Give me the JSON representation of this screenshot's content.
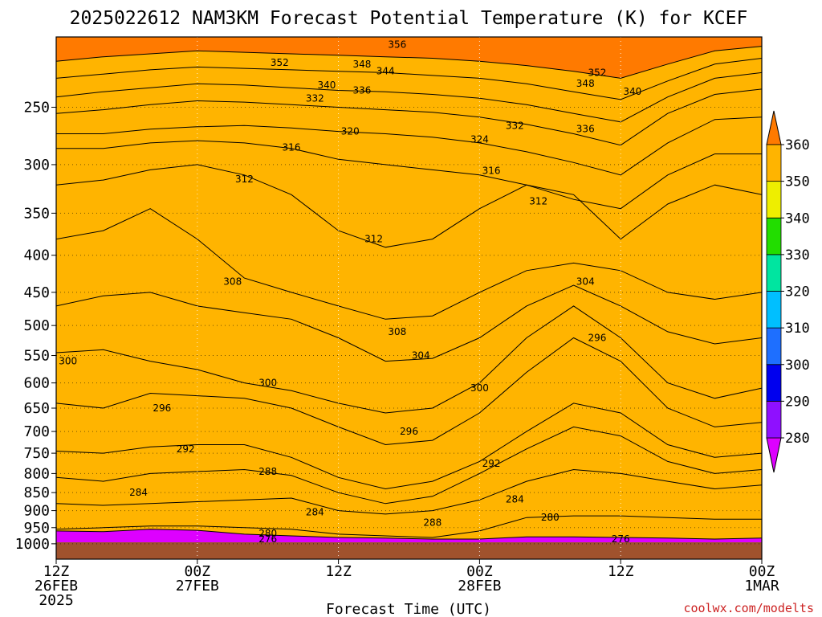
{
  "title": "2025022612 NAM3KM Forecast Potential Temperature (K) for KCEF",
  "xlabel": "Forecast Time (UTC)",
  "watermark": "coolwx.com/modelts",
  "colors": {
    "levels": [
      280,
      290,
      300,
      310,
      320,
      330,
      340,
      350,
      360
    ],
    "bands": [
      "#dd00ff",
      "#8f10ff",
      "#0000ee",
      "#1e6fff",
      "#00bfff",
      "#00e5a0",
      "#22dd00",
      "#eeee00",
      "#ffb400",
      "#ff7a00"
    ],
    "ground": "#a0522d"
  },
  "chart_data": {
    "type": "heatmap",
    "title": "2025022612 NAM3KM Forecast Potential Temperature (K) for KCEF",
    "xlabel": "Forecast Time (UTC)",
    "ylabel": "",
    "x_ticks": [
      {
        "hour": 0,
        "l1": "12Z",
        "l2": "26FEB",
        "l3": "2025"
      },
      {
        "hour": 12,
        "l1": "00Z",
        "l2": "27FEB",
        "l3": ""
      },
      {
        "hour": 24,
        "l1": "12Z",
        "l2": "",
        "l3": ""
      },
      {
        "hour": 36,
        "l1": "00Z",
        "l2": "28FEB",
        "l3": ""
      },
      {
        "hour": 48,
        "l1": "12Z",
        "l2": "",
        "l3": ""
      },
      {
        "hour": 60,
        "l1": "00Z",
        "l2": "1MAR",
        "l3": ""
      }
    ],
    "y_ticks": [
      250,
      300,
      350,
      400,
      450,
      500,
      550,
      600,
      650,
      700,
      750,
      800,
      850,
      900,
      950,
      1000
    ],
    "y_axis": "pressure (log scale, top ~200)",
    "colorbar_ticks": [
      280,
      290,
      300,
      310,
      320,
      330,
      340,
      350,
      360
    ],
    "hours": [
      0,
      4,
      8,
      12,
      16,
      20,
      24,
      28,
      32,
      36,
      40,
      44,
      48,
      52,
      56,
      60
    ],
    "contours": [
      {
        "level": 276,
        "p": [
          960,
          962,
          955,
          958,
          970,
          975,
          980,
          982,
          985,
          985,
          978,
          978,
          980,
          982,
          985,
          982
        ]
      },
      {
        "level": 280,
        "p": [
          955,
          950,
          945,
          945,
          950,
          955,
          970,
          975,
          980,
          960,
          920,
          915,
          915,
          920,
          925,
          925
        ]
      },
      {
        "level": 284,
        "p": [
          880,
          885,
          880,
          875,
          870,
          865,
          900,
          910,
          900,
          870,
          820,
          790,
          800,
          820,
          840,
          830
        ]
      },
      {
        "level": 288,
        "p": [
          810,
          820,
          800,
          795,
          790,
          805,
          850,
          880,
          860,
          800,
          740,
          690,
          710,
          770,
          800,
          790
        ]
      },
      {
        "level": 292,
        "p": [
          745,
          750,
          735,
          730,
          730,
          760,
          810,
          840,
          820,
          770,
          700,
          640,
          660,
          730,
          760,
          750
        ]
      },
      {
        "level": 296,
        "p": [
          640,
          650,
          620,
          625,
          630,
          650,
          690,
          730,
          720,
          660,
          580,
          520,
          560,
          650,
          690,
          680
        ]
      },
      {
        "level": 300,
        "p": [
          545,
          540,
          560,
          575,
          600,
          615,
          640,
          660,
          650,
          600,
          520,
          470,
          520,
          600,
          630,
          610
        ]
      },
      {
        "level": 304,
        "p": [
          470,
          455,
          450,
          470,
          480,
          490,
          520,
          560,
          555,
          520,
          470,
          440,
          470,
          510,
          530,
          520
        ]
      },
      {
        "level": 308,
        "p": [
          380,
          370,
          345,
          380,
          430,
          450,
          470,
          490,
          485,
          450,
          420,
          410,
          420,
          450,
          460,
          450
        ]
      },
      {
        "level": 312,
        "p": [
          320,
          315,
          305,
          300,
          310,
          330,
          370,
          390,
          380,
          345,
          320,
          330,
          380,
          340,
          320,
          330
        ]
      },
      {
        "level": 316,
        "p": [
          285,
          285,
          280,
          278,
          280,
          285,
          295,
          300,
          305,
          310,
          320,
          335,
          345,
          310,
          290,
          290
        ]
      },
      {
        "level": 320,
        "p": [
          272,
          272,
          268,
          266,
          265,
          267,
          270,
          272,
          275,
          280,
          288,
          298,
          310,
          280,
          260,
          258
        ]
      },
      {
        "level": 332,
        "p": [
          255,
          252,
          248,
          245,
          246,
          248,
          250,
          252,
          254,
          258,
          264,
          272,
          282,
          255,
          240,
          236
        ]
      },
      {
        "level": 340,
        "p": [
          242,
          238,
          235,
          232,
          233,
          235,
          237,
          238,
          240,
          243,
          248,
          255,
          262,
          242,
          228,
          224
        ]
      },
      {
        "level": 348,
        "p": [
          228,
          225,
          222,
          220,
          221,
          222,
          223,
          224,
          226,
          228,
          232,
          238,
          244,
          230,
          218,
          214
        ]
      },
      {
        "level": 356,
        "p": [
          216,
          213,
          211,
          209,
          210,
          211,
          212,
          213,
          214,
          216,
          219,
          223,
          228,
          218,
          209,
          206
        ]
      }
    ],
    "contour_labels": [
      {
        "text": "356",
        "hour": 29,
        "p": 205
      },
      {
        "text": "352",
        "hour": 19,
        "p": 217
      },
      {
        "text": "348",
        "hour": 26,
        "p": 218
      },
      {
        "text": "344",
        "hour": 28,
        "p": 223
      },
      {
        "text": "352",
        "hour": 46,
        "p": 224
      },
      {
        "text": "348",
        "hour": 45,
        "p": 232
      },
      {
        "text": "340",
        "hour": 23,
        "p": 233
      },
      {
        "text": "336",
        "hour": 26,
        "p": 237
      },
      {
        "text": "340",
        "hour": 49,
        "p": 238
      },
      {
        "text": "332",
        "hour": 22,
        "p": 243
      },
      {
        "text": "332",
        "hour": 39,
        "p": 265
      },
      {
        "text": "336",
        "hour": 45,
        "p": 268
      },
      {
        "text": "320",
        "hour": 25,
        "p": 270
      },
      {
        "text": "324",
        "hour": 36,
        "p": 277
      },
      {
        "text": "316",
        "hour": 20,
        "p": 284
      },
      {
        "text": "316",
        "hour": 37,
        "p": 306
      },
      {
        "text": "312",
        "hour": 16,
        "p": 314
      },
      {
        "text": "312",
        "hour": 41,
        "p": 337
      },
      {
        "text": "312",
        "hour": 27,
        "p": 380
      },
      {
        "text": "308",
        "hour": 15,
        "p": 435
      },
      {
        "text": "304",
        "hour": 45,
        "p": 435
      },
      {
        "text": "296",
        "hour": 46,
        "p": 520
      },
      {
        "text": "308",
        "hour": 29,
        "p": 510
      },
      {
        "text": "304",
        "hour": 31,
        "p": 550
      },
      {
        "text": "300",
        "hour": 1,
        "p": 560
      },
      {
        "text": "300",
        "hour": 18,
        "p": 600
      },
      {
        "text": "300",
        "hour": 36,
        "p": 610
      },
      {
        "text": "296",
        "hour": 9,
        "p": 650
      },
      {
        "text": "296",
        "hour": 30,
        "p": 700
      },
      {
        "text": "292",
        "hour": 11,
        "p": 740
      },
      {
        "text": "292",
        "hour": 37,
        "p": 775
      },
      {
        "text": "288",
        "hour": 18,
        "p": 795
      },
      {
        "text": "284",
        "hour": 7,
        "p": 850
      },
      {
        "text": "284",
        "hour": 22,
        "p": 905
      },
      {
        "text": "284",
        "hour": 39,
        "p": 868
      },
      {
        "text": "288",
        "hour": 32,
        "p": 935
      },
      {
        "text": "280",
        "hour": 42,
        "p": 920
      },
      {
        "text": "280",
        "hour": 18,
        "p": 968
      },
      {
        "text": "276",
        "hour": 18,
        "p": 985
      },
      {
        "text": "276",
        "hour": 48,
        "p": 985
      }
    ]
  }
}
